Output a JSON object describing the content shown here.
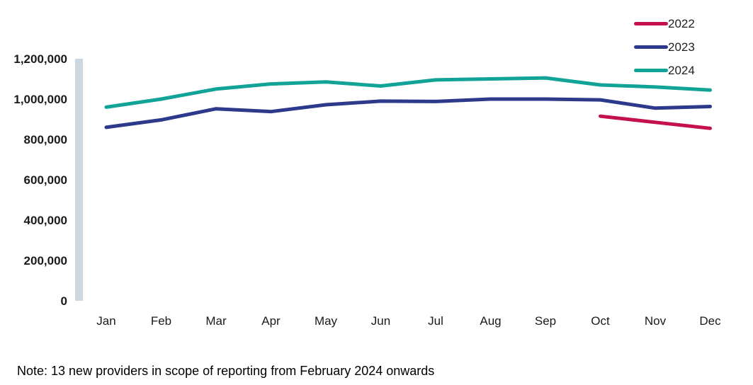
{
  "note": "Note: 13 new providers in scope of reporting from February 2024 onwards",
  "axis_bar_color": "#CBD7E1",
  "text_color": "#1a1a1a",
  "chart_data": {
    "type": "line",
    "title": "",
    "xlabel": "",
    "ylabel": "",
    "grid": false,
    "legend_position": "top-right",
    "ylim": [
      0,
      1200000
    ],
    "yticks": [
      0,
      200000,
      400000,
      600000,
      800000,
      1000000,
      1200000
    ],
    "ytick_labels": [
      "0",
      "200,000",
      "400,000",
      "600,000",
      "800,000",
      "1,000,000",
      "1,200,000"
    ],
    "categories": [
      "Jan",
      "Feb",
      "Mar",
      "Apr",
      "May",
      "Jun",
      "Jul",
      "Aug",
      "Sep",
      "Oct",
      "Nov",
      "Dec"
    ],
    "series": [
      {
        "name": "2022",
        "color": "#C4114E",
        "values": [
          null,
          null,
          null,
          null,
          null,
          null,
          null,
          null,
          null,
          915000,
          885000,
          855000
        ]
      },
      {
        "name": "2023",
        "color": "#2D3A8C",
        "values": [
          860000,
          897000,
          952000,
          938000,
          972000,
          990000,
          988000,
          1000000,
          1000000,
          996000,
          955000,
          963000
        ]
      },
      {
        "name": "2024",
        "color": "#12A398",
        "values": [
          960000,
          1000000,
          1050000,
          1075000,
          1085000,
          1065000,
          1095000,
          1100000,
          1105000,
          1070000,
          1060000,
          1045000
        ]
      }
    ]
  }
}
